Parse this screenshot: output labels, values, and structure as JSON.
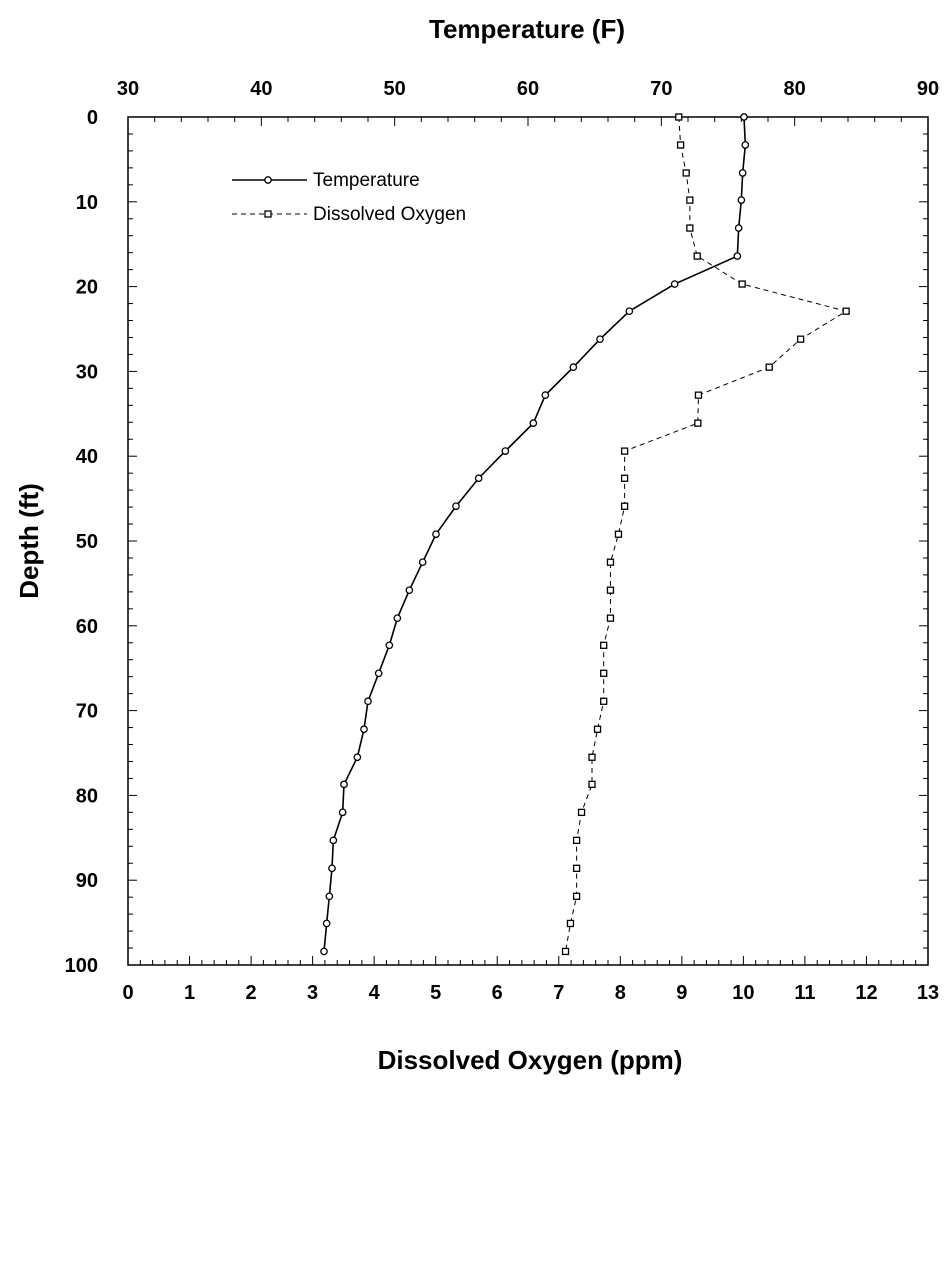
{
  "chart_data": {
    "type": "line",
    "x_bottom": {
      "label": "Dissolved Oxygen (ppm)",
      "range": [
        0,
        13
      ],
      "ticks": [
        0,
        1,
        2,
        3,
        4,
        5,
        6,
        7,
        8,
        9,
        10,
        11,
        12,
        13
      ]
    },
    "x_top": {
      "label": "Temperature (F)",
      "range": [
        30,
        90
      ],
      "ticks": [
        30,
        40,
        50,
        60,
        70,
        80,
        90
      ]
    },
    "y": {
      "label": "Depth (ft)",
      "range": [
        0,
        100
      ],
      "inverted": true,
      "ticks": [
        0,
        10,
        20,
        30,
        40,
        50,
        60,
        70,
        80,
        90,
        100
      ]
    },
    "legend": {
      "placement": "top-left"
    },
    "grid": false,
    "series": [
      {
        "name": "Temperature",
        "axis": "top",
        "marker": "circle",
        "line_style": "solid",
        "points": [
          {
            "x": 76.2,
            "y": 0
          },
          {
            "x": 76.3,
            "y": 3.3
          },
          {
            "x": 76.1,
            "y": 6.6
          },
          {
            "x": 76.0,
            "y": 9.8
          },
          {
            "x": 75.8,
            "y": 13.1
          },
          {
            "x": 75.7,
            "y": 16.4
          },
          {
            "x": 71.0,
            "y": 19.7
          },
          {
            "x": 67.6,
            "y": 22.9
          },
          {
            "x": 65.4,
            "y": 26.2
          },
          {
            "x": 63.4,
            "y": 29.5
          },
          {
            "x": 61.3,
            "y": 32.8
          },
          {
            "x": 60.4,
            "y": 36.1
          },
          {
            "x": 58.3,
            "y": 39.4
          },
          {
            "x": 56.3,
            "y": 42.6
          },
          {
            "x": 54.6,
            "y": 45.9
          },
          {
            "x": 53.1,
            "y": 49.2
          },
          {
            "x": 52.1,
            "y": 52.5
          },
          {
            "x": 51.1,
            "y": 55.8
          },
          {
            "x": 50.2,
            "y": 59.1
          },
          {
            "x": 49.6,
            "y": 62.3
          },
          {
            "x": 48.8,
            "y": 65.6
          },
          {
            "x": 48.0,
            "y": 68.9
          },
          {
            "x": 47.7,
            "y": 72.2
          },
          {
            "x": 47.2,
            "y": 75.5
          },
          {
            "x": 46.2,
            "y": 78.7
          },
          {
            "x": 46.1,
            "y": 82.0
          },
          {
            "x": 45.4,
            "y": 85.3
          },
          {
            "x": 45.3,
            "y": 88.6
          },
          {
            "x": 45.1,
            "y": 91.9
          },
          {
            "x": 44.9,
            "y": 95.1
          },
          {
            "x": 44.7,
            "y": 98.4
          }
        ]
      },
      {
        "name": "Dissolved Oxygen",
        "axis": "bottom",
        "marker": "square",
        "line_style": "dashed",
        "points": [
          {
            "x": 8.95,
            "y": 0
          },
          {
            "x": 8.98,
            "y": 3.3
          },
          {
            "x": 9.07,
            "y": 6.6
          },
          {
            "x": 9.13,
            "y": 9.8
          },
          {
            "x": 9.13,
            "y": 13.1
          },
          {
            "x": 9.25,
            "y": 16.4
          },
          {
            "x": 9.98,
            "y": 19.7
          },
          {
            "x": 11.67,
            "y": 22.9
          },
          {
            "x": 10.93,
            "y": 26.2
          },
          {
            "x": 10.42,
            "y": 29.5
          },
          {
            "x": 9.27,
            "y": 32.8
          },
          {
            "x": 9.26,
            "y": 36.1
          },
          {
            "x": 8.07,
            "y": 39.4
          },
          {
            "x": 8.07,
            "y": 42.6
          },
          {
            "x": 8.07,
            "y": 45.9
          },
          {
            "x": 7.97,
            "y": 49.2
          },
          {
            "x": 7.84,
            "y": 52.5
          },
          {
            "x": 7.84,
            "y": 55.8
          },
          {
            "x": 7.84,
            "y": 59.1
          },
          {
            "x": 7.73,
            "y": 62.3
          },
          {
            "x": 7.73,
            "y": 65.6
          },
          {
            "x": 7.73,
            "y": 68.9
          },
          {
            "x": 7.63,
            "y": 72.2
          },
          {
            "x": 7.54,
            "y": 75.5
          },
          {
            "x": 7.54,
            "y": 78.7
          },
          {
            "x": 7.37,
            "y": 82.0
          },
          {
            "x": 7.29,
            "y": 85.3
          },
          {
            "x": 7.29,
            "y": 88.6
          },
          {
            "x": 7.29,
            "y": 91.9
          },
          {
            "x": 7.19,
            "y": 95.1
          },
          {
            "x": 7.11,
            "y": 98.4
          }
        ]
      }
    ]
  }
}
